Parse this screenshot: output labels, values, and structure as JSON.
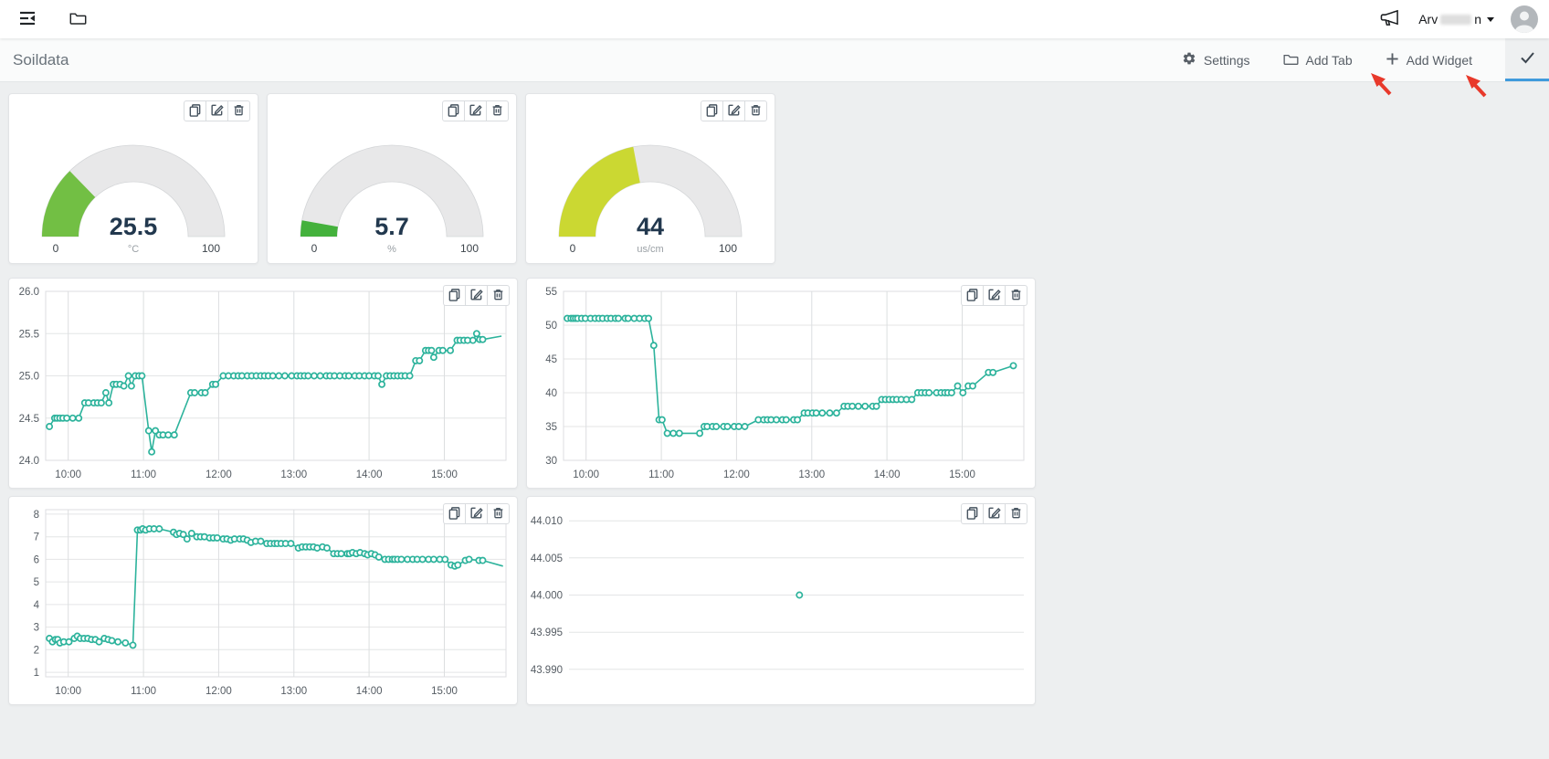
{
  "header": {
    "user_name_prefix": "Arv",
    "user_name_suffix": "n"
  },
  "toolbar": {
    "title": "Soildata",
    "buttons": [
      {
        "id": "settings",
        "label": "Settings"
      },
      {
        "id": "add-tab",
        "label": "Add Tab"
      },
      {
        "id": "add-widget",
        "label": "Add Widget"
      }
    ]
  },
  "annotations": {
    "arrow_targets": [
      "Add Tab",
      "Add Widget"
    ]
  },
  "icons": {
    "topbar": [
      "sidebar-toggle-icon",
      "folder-icon",
      "megaphone-icon",
      "avatar"
    ],
    "toolbar": [
      "gear-icon",
      "folder-icon",
      "plus-icon",
      "check-icon"
    ],
    "widget": [
      "duplicate-icon",
      "edit-icon",
      "trash-icon"
    ]
  },
  "colors": {
    "line": "#2db39c",
    "grid_h": "#e4e5e6",
    "grid_v": "#dcdee0",
    "value_text": "#22384e",
    "gauge_track": "#e8e8e9",
    "toolbar_accent": "#3f9bdc",
    "annotation": "#e8392b"
  },
  "gauges": [
    {
      "value": "25.5",
      "unit": "°C",
      "min": "0",
      "max": "100",
      "percent": 25.5,
      "color": "#72bf44"
    },
    {
      "value": "5.7",
      "unit": "%",
      "min": "0",
      "max": "100",
      "percent": 5.7,
      "color": "#44b13c"
    },
    {
      "value": "44",
      "unit": "us/cm",
      "min": "0",
      "max": "100",
      "percent": 44,
      "color": "#cbd832"
    }
  ],
  "chart_data": [
    {
      "type": "line",
      "xlim": [
        9.7,
        15.82
      ],
      "ylim": [
        24,
        26
      ],
      "xticks": [
        {
          "v": 10,
          "label": "10:00"
        },
        {
          "v": 11,
          "label": "11:00"
        },
        {
          "v": 12,
          "label": "12:00"
        },
        {
          "v": 13,
          "label": "13:00"
        },
        {
          "v": 14,
          "label": "14:00"
        },
        {
          "v": 15,
          "label": "15:00"
        }
      ],
      "yticks": [
        {
          "v": 26,
          "label": "26.0"
        },
        {
          "v": 25.5,
          "label": "25.5"
        },
        {
          "v": 25,
          "label": "25.0"
        },
        {
          "v": 24.5,
          "label": "24.5"
        },
        {
          "v": 24,
          "label": "24.0"
        }
      ],
      "grid": {
        "vertical": true,
        "horizontal": true
      },
      "points": [
        [
          9.75,
          24.4
        ],
        [
          9.82,
          24.5
        ],
        [
          9.85,
          24.5
        ],
        [
          9.89,
          24.5
        ],
        [
          9.93,
          24.5
        ],
        [
          9.98,
          24.5
        ],
        [
          10.06,
          24.5
        ],
        [
          10.14,
          24.5
        ],
        [
          10.22,
          24.68
        ],
        [
          10.27,
          24.68
        ],
        [
          10.34,
          24.68
        ],
        [
          10.39,
          24.68
        ],
        [
          10.44,
          24.68
        ],
        [
          10.5,
          24.8
        ],
        [
          10.54,
          24.68
        ],
        [
          10.6,
          24.9
        ],
        [
          10.64,
          24.9
        ],
        [
          10.69,
          24.9
        ],
        [
          10.74,
          24.88
        ],
        [
          10.8,
          25
        ],
        [
          10.84,
          24.88
        ],
        [
          10.89,
          25
        ],
        [
          10.94,
          25
        ],
        [
          10.98,
          25
        ],
        [
          11.07,
          24.35
        ],
        [
          11.11,
          24.1
        ],
        [
          11.16,
          24.35
        ],
        [
          11.21,
          24.3
        ],
        [
          11.26,
          24.3
        ],
        [
          11.33,
          24.3
        ],
        [
          11.41,
          24.3
        ],
        [
          11.63,
          24.8
        ],
        [
          11.68,
          24.8
        ],
        [
          11.77,
          24.8
        ],
        [
          11.82,
          24.8
        ],
        [
          11.92,
          24.9
        ],
        [
          11.96,
          24.9
        ],
        [
          12.06,
          25
        ],
        [
          12.13,
          25
        ],
        [
          12.2,
          25
        ],
        [
          12.26,
          25
        ],
        [
          12.31,
          25
        ],
        [
          12.38,
          25
        ],
        [
          12.44,
          25
        ],
        [
          12.5,
          25
        ],
        [
          12.56,
          25
        ],
        [
          12.61,
          25
        ],
        [
          12.66,
          25
        ],
        [
          12.72,
          25
        ],
        [
          12.8,
          25
        ],
        [
          12.88,
          25
        ],
        [
          12.97,
          25
        ],
        [
          13.04,
          25
        ],
        [
          13.09,
          25
        ],
        [
          13.14,
          25
        ],
        [
          13.19,
          25
        ],
        [
          13.27,
          25
        ],
        [
          13.35,
          25
        ],
        [
          13.43,
          25
        ],
        [
          13.48,
          25
        ],
        [
          13.54,
          25
        ],
        [
          13.61,
          25
        ],
        [
          13.68,
          25
        ],
        [
          13.73,
          25
        ],
        [
          13.81,
          25
        ],
        [
          13.87,
          25
        ],
        [
          13.94,
          25
        ],
        [
          14,
          25
        ],
        [
          14.07,
          25
        ],
        [
          14.12,
          25
        ],
        [
          14.17,
          24.9
        ],
        [
          14.23,
          25
        ],
        [
          14.28,
          25
        ],
        [
          14.33,
          25
        ],
        [
          14.38,
          25
        ],
        [
          14.43,
          25
        ],
        [
          14.48,
          25
        ],
        [
          14.54,
          25
        ],
        [
          14.62,
          25.18
        ],
        [
          14.67,
          25.18
        ],
        [
          14.75,
          25.3
        ],
        [
          14.79,
          25.3
        ],
        [
          14.83,
          25.3
        ],
        [
          14.86,
          25.22
        ],
        [
          14.93,
          25.3
        ],
        [
          14.98,
          25.3
        ],
        [
          15.08,
          25.3
        ],
        [
          15.17,
          25.42
        ],
        [
          15.21,
          25.42
        ],
        [
          15.26,
          25.42
        ],
        [
          15.31,
          25.42
        ],
        [
          15.38,
          25.42
        ],
        [
          15.43,
          25.5
        ],
        [
          15.47,
          25.43
        ],
        [
          15.51,
          25.43
        ],
        [
          15.76,
          25.47,
          0
        ]
      ]
    },
    {
      "type": "line",
      "xlim": [
        9.7,
        15.82
      ],
      "ylim": [
        30,
        55
      ],
      "xticks": [
        {
          "v": 10,
          "label": "10:00"
        },
        {
          "v": 11,
          "label": "11:00"
        },
        {
          "v": 12,
          "label": "12:00"
        },
        {
          "v": 13,
          "label": "13:00"
        },
        {
          "v": 14,
          "label": "14:00"
        },
        {
          "v": 15,
          "label": "15:00"
        }
      ],
      "yticks": [
        {
          "v": 55,
          "label": "55"
        },
        {
          "v": 50,
          "label": "50"
        },
        {
          "v": 45,
          "label": "45"
        },
        {
          "v": 40,
          "label": "40"
        },
        {
          "v": 35,
          "label": "35"
        },
        {
          "v": 30,
          "label": "30"
        }
      ],
      "grid": {
        "vertical": true,
        "horizontal": true
      },
      "points": [
        [
          9.75,
          51
        ],
        [
          9.8,
          51
        ],
        [
          9.83,
          51
        ],
        [
          9.86,
          51
        ],
        [
          9.89,
          51
        ],
        [
          9.94,
          51
        ],
        [
          9.99,
          51
        ],
        [
          10.06,
          51
        ],
        [
          10.12,
          51
        ],
        [
          10.17,
          51
        ],
        [
          10.22,
          51
        ],
        [
          10.28,
          51
        ],
        [
          10.33,
          51
        ],
        [
          10.39,
          51
        ],
        [
          10.43,
          51
        ],
        [
          10.52,
          51
        ],
        [
          10.56,
          51
        ],
        [
          10.64,
          51
        ],
        [
          10.71,
          51
        ],
        [
          10.78,
          51
        ],
        [
          10.83,
          51
        ],
        [
          10.9,
          47
        ],
        [
          10.97,
          36
        ],
        [
          11.01,
          36
        ],
        [
          11.08,
          34
        ],
        [
          11.16,
          34
        ],
        [
          11.24,
          34
        ],
        [
          11.51,
          34
        ],
        [
          11.57,
          35
        ],
        [
          11.61,
          35
        ],
        [
          11.68,
          35
        ],
        [
          11.73,
          35
        ],
        [
          11.83,
          35
        ],
        [
          11.88,
          35
        ],
        [
          11.97,
          35
        ],
        [
          12.03,
          35
        ],
        [
          12.11,
          35
        ],
        [
          12.29,
          36
        ],
        [
          12.36,
          36
        ],
        [
          12.41,
          36
        ],
        [
          12.46,
          36
        ],
        [
          12.53,
          36
        ],
        [
          12.61,
          36
        ],
        [
          12.66,
          36
        ],
        [
          12.76,
          36
        ],
        [
          12.81,
          36
        ],
        [
          12.9,
          37
        ],
        [
          12.95,
          37
        ],
        [
          13.01,
          37
        ],
        [
          13.06,
          37
        ],
        [
          13.14,
          37
        ],
        [
          13.24,
          37
        ],
        [
          13.33,
          37
        ],
        [
          13.43,
          38
        ],
        [
          13.48,
          38
        ],
        [
          13.54,
          38
        ],
        [
          13.62,
          38
        ],
        [
          13.71,
          38
        ],
        [
          13.81,
          38
        ],
        [
          13.86,
          38
        ],
        [
          13.93,
          39
        ],
        [
          13.98,
          39
        ],
        [
          14.03,
          39
        ],
        [
          14.08,
          39
        ],
        [
          14.13,
          39
        ],
        [
          14.19,
          39
        ],
        [
          14.26,
          39
        ],
        [
          14.33,
          39
        ],
        [
          14.41,
          40
        ],
        [
          14.46,
          40
        ],
        [
          14.51,
          40
        ],
        [
          14.56,
          40
        ],
        [
          14.66,
          40
        ],
        [
          14.72,
          40
        ],
        [
          14.77,
          40
        ],
        [
          14.81,
          40
        ],
        [
          14.86,
          40
        ],
        [
          14.94,
          41
        ],
        [
          15.01,
          40
        ],
        [
          15.08,
          41
        ],
        [
          15.14,
          41
        ],
        [
          15.35,
          43
        ],
        [
          15.41,
          43
        ],
        [
          15.68,
          44
        ]
      ]
    },
    {
      "type": "line",
      "xlim": [
        9.7,
        15.82
      ],
      "ylim": [
        0.8,
        8.2
      ],
      "xticks": [
        {
          "v": 10,
          "label": "10:00"
        },
        {
          "v": 11,
          "label": "11:00"
        },
        {
          "v": 12,
          "label": "12:00"
        },
        {
          "v": 13,
          "label": "13:00"
        },
        {
          "v": 14,
          "label": "14:00"
        },
        {
          "v": 15,
          "label": "15:00"
        }
      ],
      "yticks": [
        {
          "v": 8,
          "label": "8"
        },
        {
          "v": 7,
          "label": "7"
        },
        {
          "v": 6,
          "label": "6"
        },
        {
          "v": 5,
          "label": "5"
        },
        {
          "v": 4,
          "label": "4"
        },
        {
          "v": 3,
          "label": "3"
        },
        {
          "v": 2,
          "label": "2"
        },
        {
          "v": 1,
          "label": "1"
        }
      ],
      "grid": {
        "vertical": true,
        "horizontal": true
      },
      "points": [
        [
          9.75,
          2.5
        ],
        [
          9.79,
          2.35
        ],
        [
          9.83,
          2.45
        ],
        [
          9.86,
          2.45
        ],
        [
          9.89,
          2.3
        ],
        [
          9.94,
          2.35
        ],
        [
          10.01,
          2.35
        ],
        [
          10.08,
          2.5
        ],
        [
          10.12,
          2.6
        ],
        [
          10.16,
          2.5
        ],
        [
          10.21,
          2.5
        ],
        [
          10.26,
          2.5
        ],
        [
          10.31,
          2.45
        ],
        [
          10.36,
          2.45
        ],
        [
          10.41,
          2.35
        ],
        [
          10.48,
          2.5
        ],
        [
          10.53,
          2.45
        ],
        [
          10.58,
          2.4
        ],
        [
          10.66,
          2.35
        ],
        [
          10.76,
          2.3
        ],
        [
          10.86,
          2.2
        ],
        [
          10.92,
          7.3
        ],
        [
          10.96,
          7.3
        ],
        [
          10.99,
          7.35
        ],
        [
          11.03,
          7.3
        ],
        [
          11.08,
          7.35
        ],
        [
          11.14,
          7.35
        ],
        [
          11.21,
          7.35
        ],
        [
          11.4,
          7.2
        ],
        [
          11.44,
          7.1
        ],
        [
          11.48,
          7.15
        ],
        [
          11.53,
          7.1
        ],
        [
          11.58,
          6.9
        ],
        [
          11.64,
          7.15
        ],
        [
          11.71,
          7
        ],
        [
          11.76,
          7
        ],
        [
          11.81,
          7
        ],
        [
          11.88,
          6.95
        ],
        [
          11.93,
          6.95
        ],
        [
          11.98,
          6.95
        ],
        [
          12.06,
          6.9
        ],
        [
          12.11,
          6.9
        ],
        [
          12.16,
          6.85
        ],
        [
          12.21,
          6.9
        ],
        [
          12.28,
          6.9
        ],
        [
          12.33,
          6.9
        ],
        [
          12.38,
          6.85
        ],
        [
          12.43,
          6.75
        ],
        [
          12.49,
          6.8
        ],
        [
          12.56,
          6.8
        ],
        [
          12.64,
          6.7
        ],
        [
          12.69,
          6.7
        ],
        [
          12.74,
          6.7
        ],
        [
          12.78,
          6.7
        ],
        [
          12.83,
          6.7
        ],
        [
          12.89,
          6.7
        ],
        [
          12.96,
          6.7
        ],
        [
          13.06,
          6.5
        ],
        [
          13.11,
          6.55
        ],
        [
          13.16,
          6.55
        ],
        [
          13.21,
          6.55
        ],
        [
          13.26,
          6.55
        ],
        [
          13.31,
          6.5
        ],
        [
          13.38,
          6.55
        ],
        [
          13.44,
          6.5
        ],
        [
          13.53,
          6.25
        ],
        [
          13.58,
          6.25
        ],
        [
          13.63,
          6.25
        ],
        [
          13.71,
          6.25
        ],
        [
          13.74,
          6.25
        ],
        [
          13.78,
          6.3
        ],
        [
          13.83,
          6.25
        ],
        [
          13.88,
          6.3
        ],
        [
          13.94,
          6.25
        ],
        [
          13.98,
          6.2
        ],
        [
          14.03,
          6.25
        ],
        [
          14.08,
          6.2
        ],
        [
          14.13,
          6.1
        ],
        [
          14.21,
          6
        ],
        [
          14.26,
          6
        ],
        [
          14.31,
          6
        ],
        [
          14.34,
          6
        ],
        [
          14.38,
          6
        ],
        [
          14.43,
          6
        ],
        [
          14.51,
          6
        ],
        [
          14.58,
          6
        ],
        [
          14.64,
          6
        ],
        [
          14.71,
          6
        ],
        [
          14.79,
          6
        ],
        [
          14.86,
          6
        ],
        [
          14.94,
          6
        ],
        [
          15.01,
          6
        ],
        [
          15.09,
          5.75
        ],
        [
          15.14,
          5.7
        ],
        [
          15.18,
          5.75
        ],
        [
          15.28,
          5.95
        ],
        [
          15.33,
          6
        ],
        [
          15.46,
          5.95
        ],
        [
          15.51,
          5.95
        ],
        [
          15.78,
          5.7,
          0
        ]
      ]
    },
    {
      "type": "line",
      "xlim": [
        9.7,
        15.82
      ],
      "ylim": [
        43.9885,
        44.0115
      ],
      "xticks": [],
      "yticks": [
        {
          "v": 44.01,
          "label": "44.010"
        },
        {
          "v": 44.005,
          "label": "44.005"
        },
        {
          "v": 44,
          "label": "44.000"
        },
        {
          "v": 43.995,
          "label": "43.995"
        },
        {
          "v": 43.99,
          "label": "43.990"
        }
      ],
      "grid": {
        "vertical": false,
        "horizontal": true
      },
      "points": [
        [
          12.8,
          44
        ]
      ]
    }
  ]
}
